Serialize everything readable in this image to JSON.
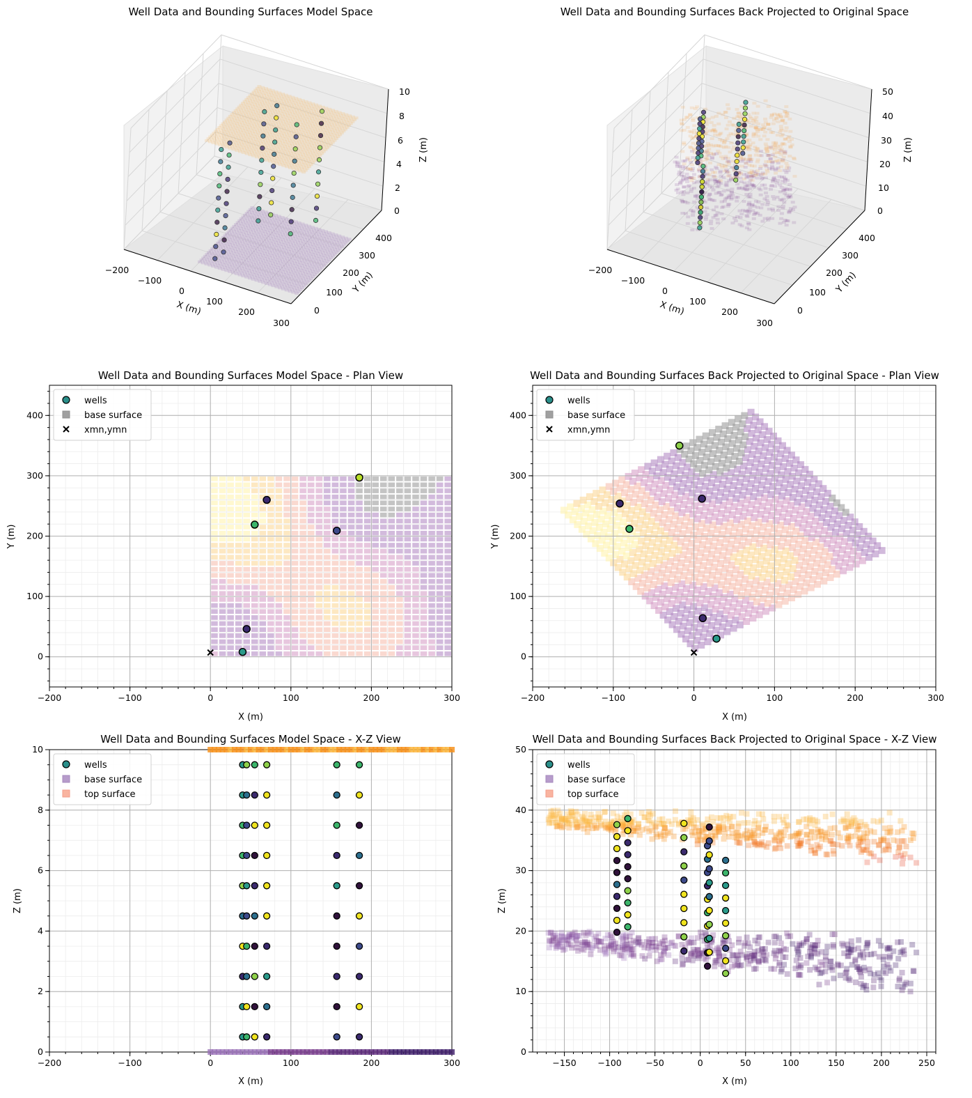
{
  "chart_data": [
    {
      "id": "p3d_model",
      "type": "scatter",
      "title": "Well Data and Bounding Surfaces Model Space",
      "xlabel": "X (m)",
      "ylabel": "Y (m)",
      "zlabel": "Z (m)",
      "xticks": [
        "−200",
        "−100",
        "0",
        "100",
        "200",
        "300"
      ],
      "yticks": [
        "0",
        "100",
        "200",
        "300",
        "400"
      ],
      "zticks": [
        "0",
        "2",
        "4",
        "6",
        "8",
        "10"
      ],
      "xlim": [
        -200,
        300
      ],
      "ylim": [
        -50,
        450
      ],
      "zlim": [
        0,
        10
      ],
      "surfaces": [
        {
          "name": "base surface",
          "z": 0,
          "x_range": [
            0,
            300
          ],
          "y_range": [
            0,
            300
          ],
          "color": "#9a72b8"
        },
        {
          "name": "top surface",
          "z": 10,
          "x_range": [
            0,
            300
          ],
          "y_range": [
            0,
            300
          ],
          "color": "#f7b760"
        }
      ],
      "wells": [
        {
          "x": 40,
          "y": 8,
          "z": [
            0.5,
            1.5,
            2.5,
            3.5,
            4.5,
            5.5,
            6.5,
            7.5,
            8.5,
            9.5
          ]
        },
        {
          "x": 45,
          "y": 46,
          "z": [
            0.5,
            1.5,
            2.5,
            3.5,
            4.5,
            5.5,
            6.5,
            7.5,
            8.5,
            9.5
          ]
        },
        {
          "x": 55,
          "y": 219,
          "z": [
            0.5,
            1.5,
            2.5,
            3.5,
            4.5,
            5.5,
            6.5,
            7.5,
            8.5,
            9.5
          ]
        },
        {
          "x": 70,
          "y": 260,
          "z": [
            0.5,
            1.5,
            2.5,
            3.5,
            4.5,
            5.5,
            6.5,
            7.5,
            8.5,
            9.5
          ]
        },
        {
          "x": 157,
          "y": 209,
          "z": [
            0.5,
            1.5,
            2.5,
            3.5,
            4.5,
            5.5,
            6.5,
            7.5,
            8.5,
            9.5
          ]
        },
        {
          "x": 185,
          "y": 297,
          "z": [
            0.5,
            1.5,
            2.5,
            3.5,
            4.5,
            5.5,
            6.5,
            7.5,
            8.5,
            9.5
          ]
        }
      ]
    },
    {
      "id": "p3d_orig",
      "type": "scatter",
      "title": "Well Data and Bounding Surfaces Back Projected to Original Space",
      "xlabel": "X (m)",
      "ylabel": "Y (m)",
      "zlabel": "Z (m)",
      "xticks": [
        "−200",
        "−100",
        "0",
        "100",
        "200",
        "300"
      ],
      "yticks": [
        "0",
        "100",
        "200",
        "300",
        "400"
      ],
      "zticks": [
        "0",
        "10",
        "20",
        "30",
        "40",
        "50"
      ],
      "xlim": [
        -200,
        300
      ],
      "ylim": [
        -50,
        450
      ],
      "zlim": [
        0,
        50
      ],
      "surfaces": [
        {
          "name": "base surface",
          "z_range": [
            10,
            20
          ],
          "color": "#7a3f8f"
        },
        {
          "name": "top surface",
          "z_range": [
            30,
            40
          ],
          "color": "#f59a3c"
        }
      ],
      "wells": [
        {
          "x": -92,
          "y": 254,
          "z_range": [
            20,
            38
          ]
        },
        {
          "x": -80,
          "y": 212,
          "z_range": [
            21,
            39
          ]
        },
        {
          "x": -18,
          "y": 350,
          "z_range": [
            17,
            38
          ]
        },
        {
          "x": 10,
          "y": 262,
          "z_range": [
            14,
            37
          ]
        },
        {
          "x": 11,
          "y": 64,
          "z_range": [
            16,
            35
          ]
        },
        {
          "x": 28,
          "y": 30,
          "z_range": [
            13,
            32
          ]
        }
      ]
    },
    {
      "id": "plan_model",
      "type": "scatter",
      "title": "Well Data and Bounding Surfaces Model Space - Plan View",
      "xlabel": "X (m)",
      "ylabel": "Y (m)",
      "xlim": [
        -200,
        300
      ],
      "ylim": [
        -50,
        450
      ],
      "xticks": [
        -200,
        -100,
        0,
        100,
        200,
        300
      ],
      "yticks": [
        0,
        100,
        200,
        300,
        400
      ],
      "legend": [
        "wells",
        "base surface",
        "xmn,ymn"
      ],
      "legend_position": "top-left",
      "surface_extent": {
        "x": [
          0,
          300
        ],
        "y": [
          0,
          300
        ]
      },
      "wells": [
        {
          "x": 40,
          "y": 8,
          "color": "#2a9a8a"
        },
        {
          "x": 45,
          "y": 46,
          "color": "#3b2a6e"
        },
        {
          "x": 55,
          "y": 219,
          "color": "#3cb56b"
        },
        {
          "x": 70,
          "y": 260,
          "color": "#3b2a6e"
        },
        {
          "x": 157,
          "y": 209,
          "color": "#3d4a8a"
        },
        {
          "x": 185,
          "y": 297,
          "color": "#b8de29"
        }
      ],
      "origin_marker": {
        "x": 0,
        "y": 7
      }
    },
    {
      "id": "plan_orig",
      "type": "scatter",
      "title": "Well Data and Bounding Surfaces Back Projected to Original Space - Plan View",
      "xlabel": "X (m)",
      "ylabel": "Y (m)",
      "xlim": [
        -200,
        300
      ],
      "ylim": [
        -50,
        450
      ],
      "xticks": [
        -200,
        -100,
        0,
        100,
        200,
        300
      ],
      "yticks": [
        0,
        100,
        200,
        300,
        400
      ],
      "legend": [
        "wells",
        "base surface",
        "xmn,ymn"
      ],
      "legend_position": "top-left",
      "surface_corners": [
        [
          0,
          7
        ],
        [
          240,
          175
        ],
        [
          72,
          412
        ],
        [
          -168,
          244
        ]
      ],
      "wells": [
        {
          "x": -92,
          "y": 254,
          "color": "#3b2a6e"
        },
        {
          "x": -80,
          "y": 212,
          "color": "#3cb56b"
        },
        {
          "x": -18,
          "y": 350,
          "color": "#8fd24a"
        },
        {
          "x": 10,
          "y": 262,
          "color": "#3b2a6e"
        },
        {
          "x": 11,
          "y": 64,
          "color": "#3b2a6e"
        },
        {
          "x": 28,
          "y": 30,
          "color": "#2a9a8a"
        }
      ],
      "origin_marker": {
        "x": 0,
        "y": 7
      }
    },
    {
      "id": "xz_model",
      "type": "scatter",
      "title": "Well Data and Bounding Surfaces Model Space - X-Z View",
      "xlabel": "X (m)",
      "ylabel": "Z (m)",
      "xlim": [
        -200,
        300
      ],
      "ylim": [
        0,
        10
      ],
      "xticks": [
        -200,
        -100,
        0,
        100,
        200,
        300
      ],
      "yticks": [
        0,
        2,
        4,
        6,
        8,
        10
      ],
      "legend": [
        "wells",
        "base surface",
        "top surface"
      ],
      "legend_position": "top-left",
      "base_surface": {
        "z": 0,
        "x_range": [
          0,
          300
        ]
      },
      "top_surface": {
        "z": 10,
        "x_range": [
          0,
          300
        ]
      },
      "well_x": [
        40,
        45,
        55,
        70,
        157,
        185
      ],
      "well_z": [
        0.5,
        1.5,
        2.5,
        3.5,
        4.5,
        5.5,
        6.5,
        7.5,
        8.5,
        9.5
      ]
    },
    {
      "id": "xz_orig",
      "type": "scatter",
      "title": "Well Data and Bounding Surfaces Back Projected to Original Space  - X-Z View",
      "xlabel": "X (m)",
      "ylabel": "Z (m)",
      "xlim": [
        -185,
        260
      ],
      "ylim": [
        0,
        50
      ],
      "xticks": [
        -150,
        -100,
        -50,
        0,
        50,
        100,
        150,
        200,
        250
      ],
      "yticks": [
        0,
        10,
        20,
        30,
        40,
        50
      ],
      "legend": [
        "wells",
        "base surface",
        "top surface"
      ],
      "legend_position": "top-left",
      "base_surface": {
        "z_range": [
          10,
          20
        ],
        "x_range": [
          -168,
          240
        ]
      },
      "top_surface": {
        "z_range": [
          30,
          40
        ],
        "x_range": [
          -168,
          240
        ]
      },
      "wells": [
        {
          "x": -92,
          "z_range": [
            19.8,
            37.6
          ]
        },
        {
          "x": -80,
          "z_range": [
            20.7,
            38.6
          ]
        },
        {
          "x": -18,
          "z_range": [
            16.7,
            37.8
          ]
        },
        {
          "x": 8,
          "z_range": [
            14.2,
            34.1
          ]
        },
        {
          "x": 10,
          "z_range": [
            16.5,
            37.2
          ]
        },
        {
          "x": 28,
          "z_range": [
            13.0,
            31.7
          ]
        }
      ]
    }
  ],
  "colors": {
    "well_colors": [
      "#30123b",
      "#3b2a6e",
      "#3d4a8a",
      "#2c6f8e",
      "#2a9a8a",
      "#3cb56b",
      "#8fd24a",
      "#f0e41f"
    ],
    "top_colors": [
      "#fde725",
      "#fbb63f",
      "#f7931e",
      "#f2741f",
      "#e8573a"
    ],
    "base_colors": [
      "#9a72b8",
      "#7a3f8f",
      "#5c2a7a",
      "#3e1e6a"
    ],
    "plan_colors": [
      "#fff3b0",
      "#fcd89a",
      "#f7c0b0",
      "#d7a0c8",
      "#b48cc4",
      "#9c9c9c"
    ],
    "legend_well": "#2a8f8a",
    "legend_base_gray": "#a0a0a0",
    "legend_base_purple": "#b79ccb",
    "legend_top": "#f9b4a0"
  }
}
